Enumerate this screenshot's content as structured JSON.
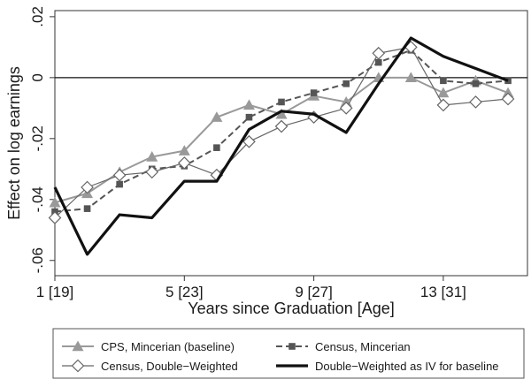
{
  "chart_data": {
    "type": "line",
    "title": "",
    "xlabel": "Years since Graduation [Age]",
    "ylabel": "Effect on log earnings",
    "x": [
      1,
      2,
      3,
      4,
      5,
      6,
      7,
      8,
      9,
      10,
      11,
      12,
      13,
      14,
      15
    ],
    "xlim": [
      1,
      15.6
    ],
    "ylim": [
      -0.065,
      0.022
    ],
    "x_ticks": [
      {
        "value": 1,
        "label": "1 [19]"
      },
      {
        "value": 5,
        "label": "5 [23]"
      },
      {
        "value": 9,
        "label": "9 [27]"
      },
      {
        "value": 13,
        "label": "13 [31]"
      }
    ],
    "y_ticks": [
      {
        "value": 0.02,
        "label": ".02"
      },
      {
        "value": 0,
        "label": "0"
      },
      {
        "value": -0.02,
        "label": "-.02"
      },
      {
        "value": -0.04,
        "label": "-.04"
      },
      {
        "value": -0.06,
        "label": "-.06"
      }
    ],
    "reference_line": 0,
    "grid": false,
    "legend_position": "bottom",
    "series": [
      {
        "name": "CPS, Mincerian (baseline)",
        "marker": "triangle",
        "dash": "solid",
        "width": 2,
        "color": "#999999",
        "values": [
          -0.041,
          -0.038,
          -0.031,
          -0.026,
          -0.024,
          -0.013,
          -0.009,
          -0.012,
          -0.006,
          -0.008,
          0.0,
          0.0,
          -0.005,
          -0.001,
          -0.005
        ]
      },
      {
        "name": "Census, Mincerian",
        "marker": "square",
        "dash": "dashed",
        "width": 2,
        "color": "#555555",
        "values": [
          -0.044,
          -0.043,
          -0.035,
          -0.03,
          -0.029,
          -0.023,
          -0.013,
          -0.008,
          -0.005,
          -0.002,
          0.005,
          0.009,
          -0.001,
          -0.002,
          -0.001
        ]
      },
      {
        "name": "Census, Double−Weighted",
        "marker": "diamond",
        "dash": "solid",
        "width": 1.2,
        "color": "#666666",
        "values": [
          -0.046,
          -0.036,
          -0.032,
          -0.031,
          -0.028,
          -0.032,
          -0.021,
          -0.016,
          -0.013,
          -0.01,
          0.008,
          0.01,
          -0.009,
          -0.008,
          -0.007
        ]
      },
      {
        "name": "Double−Weighted as IV for baseline",
        "marker": "none",
        "dash": "solid",
        "width": 3.2,
        "color": "#111111",
        "values": [
          -0.036,
          -0.058,
          -0.045,
          -0.046,
          -0.034,
          -0.034,
          -0.017,
          -0.011,
          -0.012,
          -0.018,
          -0.002,
          0.013,
          0.007,
          0.003,
          -0.001
        ]
      }
    ]
  }
}
